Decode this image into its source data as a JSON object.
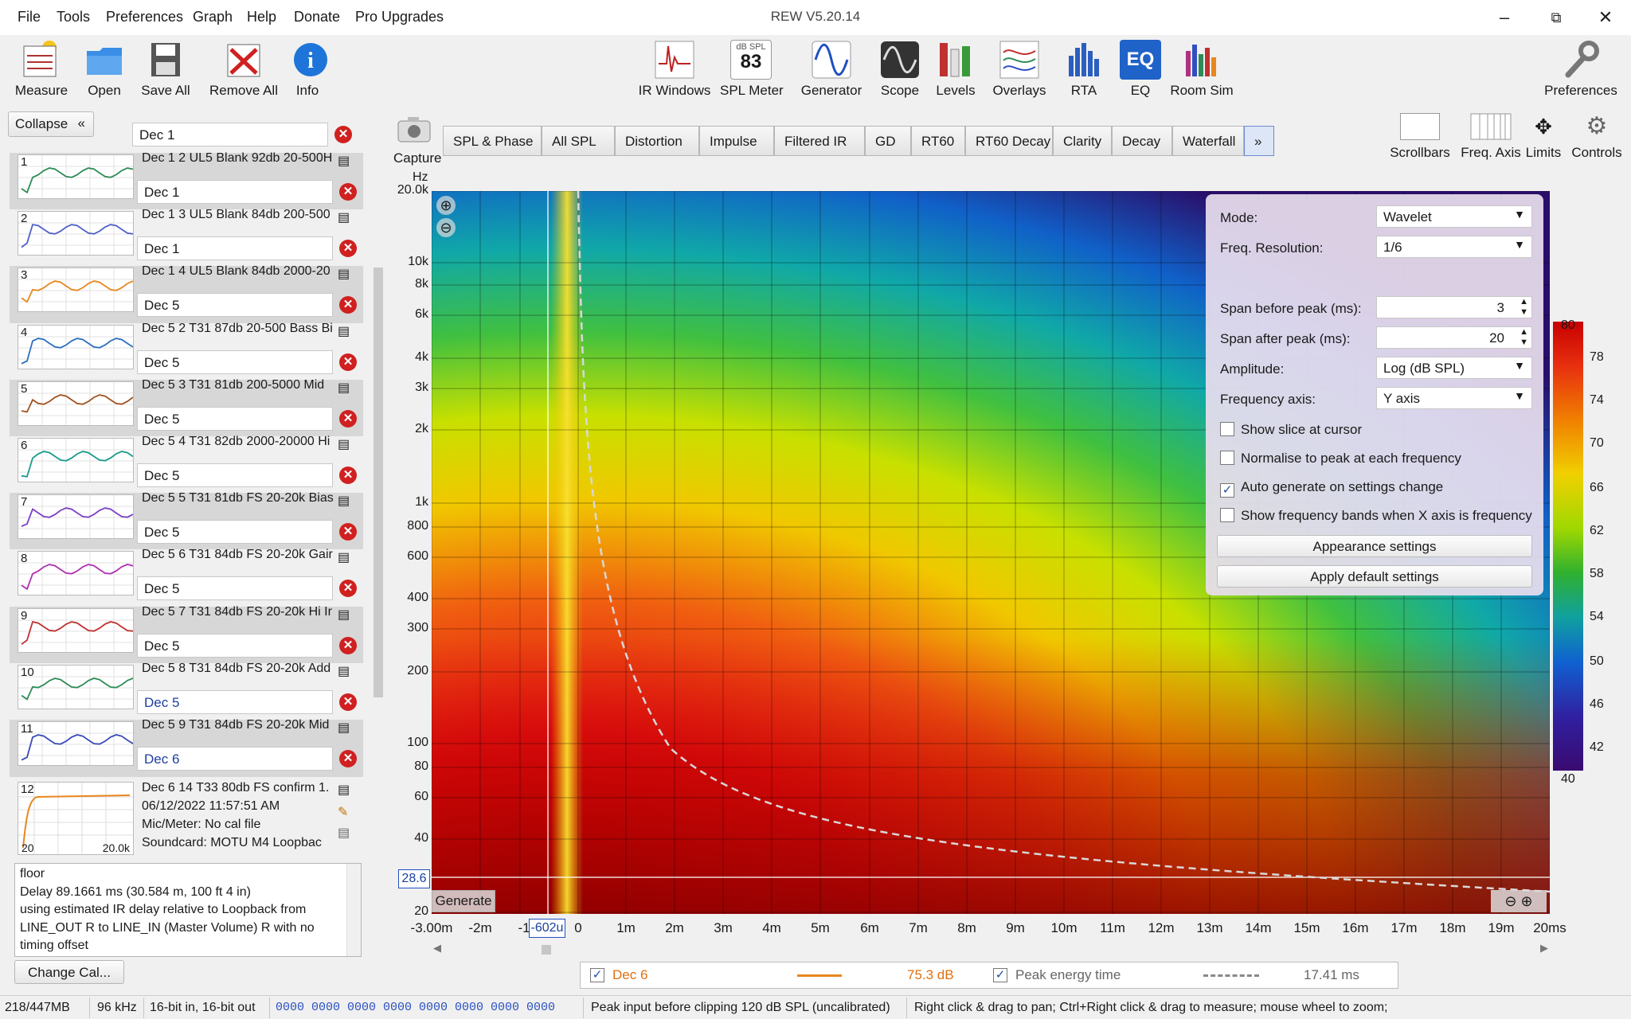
{
  "menu": {
    "items": [
      "File",
      "Tools",
      "Preferences",
      "Graph",
      "Help",
      "Donate",
      "Pro Upgrades"
    ],
    "app_title": "REW V5.20.14"
  },
  "toolbar": {
    "left": [
      "Measure",
      "Open",
      "Save All",
      "Remove All",
      "Info"
    ],
    "center": [
      "IR Windows",
      "SPL Meter",
      "Generator",
      "Scope",
      "Levels",
      "Overlays",
      "RTA",
      "EQ",
      "Room Sim"
    ],
    "spl_meter_badge": "83",
    "spl_meter_unit": "dB SPL",
    "eq_badge": "EQ",
    "right": "Preferences"
  },
  "left_panel": {
    "collapse_label": "Collapse",
    "top_notes": "Dec 1",
    "measurements": [
      {
        "num": "1",
        "name": "Dec 1 2 UL5 Blank 92db 20-500H",
        "notes": "Dec 1",
        "color": "#2e8b57"
      },
      {
        "num": "2",
        "name": "Dec 1 3 UL5 Blank 84db 200-500",
        "notes": "Dec 1",
        "color": "#5060c8"
      },
      {
        "num": "3",
        "name": "Dec 1 4 UL5 Blank 84db 2000-20",
        "notes": "Dec 5",
        "color": "#e8871e"
      },
      {
        "num": "4",
        "name": "Dec 5 2 T31 87db 20-500 Bass Bi",
        "notes": "Dec 5",
        "color": "#2a6fc0"
      },
      {
        "num": "5",
        "name": "Dec 5 3 T31 81db 200-5000 Mid",
        "notes": "Dec 5",
        "color": "#a0521d"
      },
      {
        "num": "6",
        "name": "Dec 5 4 T31 82db 2000-20000 Hi",
        "notes": "Dec 5",
        "color": "#1a9a8a"
      },
      {
        "num": "7",
        "name": "Dec 5 5 T31 81db FS 20-20k Bias",
        "notes": "Dec 5",
        "color": "#7b3fc8"
      },
      {
        "num": "8",
        "name": "Dec 5 6 T31 84db FS 20-20k Gair",
        "notes": "Dec 5",
        "color": "#b030b0"
      },
      {
        "num": "9",
        "name": "Dec 5 7 T31 84db FS 20-20k Hi Ir",
        "notes": "Dec 5",
        "color": "#c03030"
      },
      {
        "num": "10",
        "name": "Dec 5 8 T31 84db FS 20-20k Add",
        "notes": "Dec 5",
        "color": "#2e8b57"
      },
      {
        "num": "11",
        "name": "Dec 5 9 T31 84db FS 20-20k Mid",
        "notes": "Dec 6",
        "color": "#3a4ab8"
      }
    ],
    "selected": {
      "num": "12",
      "name": "Dec 6 14 T33 80db FS confirm 1.",
      "date": "06/12/2022 11:57:51 AM",
      "mic": "Mic/Meter: No cal file",
      "soundcard": "Soundcard: MOTU M4 Loopbac",
      "mini_x_start": "20",
      "mini_x_end": "20.0k",
      "color": "#e8871e"
    },
    "info_text": [
      "floor",
      "Delay 89.1661 ms (30.584 m, 100 ft 4 in)",
      "using estimated IR delay relative to Loopback from",
      "LINE_OUT R to LINE_IN (Master Volume) R with no",
      "timing offset"
    ],
    "change_cal_label": "Change Cal..."
  },
  "graph_tabs": {
    "capture_label": "Capture",
    "tabs": [
      "SPL & Phase",
      "All SPL",
      "Distortion",
      "Impulse",
      "Filtered IR",
      "GD",
      "RT60",
      "RT60 Decay",
      "Clarity",
      "Decay",
      "Waterfall"
    ],
    "more": "»",
    "right_buttons": [
      "Scrollbars",
      "Freq. Axis",
      "Limits",
      "Controls"
    ]
  },
  "chart": {
    "y_unit": "Hz",
    "y_ticks": [
      "20.0k",
      "10k",
      "8k",
      "6k",
      "4k",
      "3k",
      "2k",
      "1k",
      "800",
      "600",
      "400",
      "300",
      "200",
      "100",
      "80",
      "60",
      "40",
      "20"
    ],
    "x_ticks": [
      "-3.00m",
      "-2m",
      "-1",
      "0",
      "1m",
      "2m",
      "3m",
      "4m",
      "5m",
      "6m",
      "7m",
      "8m",
      "9m",
      "10m",
      "11m",
      "12m",
      "13m",
      "14m",
      "15m",
      "16m",
      "17m",
      "18m",
      "19m",
      "20ms"
    ],
    "cursor_x_readout": "-602u",
    "cursor_y_readout": "28.6",
    "generate_label": "Generate",
    "colorscale_ticks": [
      "80",
      "78",
      "74",
      "70",
      "66",
      "62",
      "58",
      "54",
      "50",
      "46",
      "42",
      "40"
    ]
  },
  "controls": {
    "mode_label": "Mode:",
    "mode_value": "Wavelet",
    "freq_res_label": "Freq. Resolution:",
    "freq_res_value": "1/6",
    "span_before_label": "Span before peak (ms):",
    "span_before_value": "3",
    "span_after_label": "Span after peak (ms):",
    "span_after_value": "20",
    "amplitude_label": "Amplitude:",
    "amplitude_value": "Log (dB SPL)",
    "freq_axis_label": "Frequency axis:",
    "freq_axis_value": "Y axis",
    "checks": [
      {
        "label": "Show slice at cursor",
        "checked": false
      },
      {
        "label": "Normalise to peak at each frequency",
        "checked": false
      },
      {
        "label": "Auto generate on settings change",
        "checked": true
      },
      {
        "label": "Show frequency bands when X axis is frequency",
        "checked": false
      }
    ],
    "appearance_label": "Appearance settings",
    "defaults_label": "Apply default settings"
  },
  "legend": {
    "series_name": "Dec 6",
    "series_value": "75.3 dB",
    "peak_label": "Peak energy time",
    "peak_value": "17.41 ms"
  },
  "status": {
    "memory": "218/447MB",
    "rate": "96 kHz",
    "bits": "16-bit in, 16-bit out",
    "bits_readout": "0000 0000  0000 0000  0000 0000  0000 0000",
    "peak_input": "Peak input before clipping 120 dB SPL (uncalibrated)",
    "hint": "Right click & drag to pan; Ctrl+Right click & drag to measure; mouse wheel to zoom;"
  }
}
